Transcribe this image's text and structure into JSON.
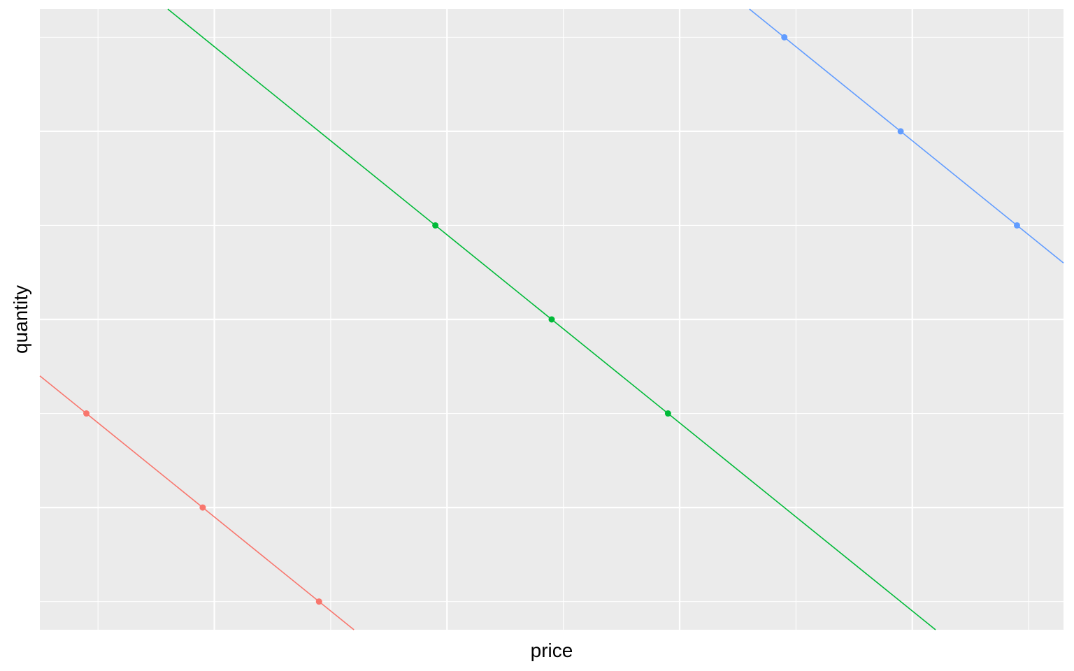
{
  "chart_data": {
    "type": "line",
    "title": "",
    "xlabel": "price",
    "ylabel": "quantity",
    "x_ticks_labeled": false,
    "y_ticks_labeled": false,
    "xlim": [
      0.5,
      9.3
    ],
    "ylim": [
      0.7,
      7.3
    ],
    "x_gridlines_major": [
      2,
      4,
      6,
      8
    ],
    "x_gridlines_minor": [
      1,
      3,
      5,
      7,
      9
    ],
    "y_gridlines_major": [
      2,
      4,
      6
    ],
    "y_gridlines_minor": [
      1,
      3,
      5,
      7
    ],
    "grid": true,
    "background": "#EBEBEB",
    "gridline_color": "#FFFFFF",
    "legend": "none",
    "series": [
      {
        "color": "#F8766D",
        "points": [
          [
            0.9,
            3
          ],
          [
            1.9,
            2
          ],
          [
            2.9,
            1
          ]
        ],
        "line": [
          [
            0.5,
            3.4
          ],
          [
            3.2,
            0.7
          ]
        ]
      },
      {
        "color": "#00BA38",
        "points": [
          [
            3.9,
            5
          ],
          [
            4.9,
            4
          ],
          [
            5.9,
            3
          ]
        ],
        "line": [
          [
            1.6,
            7.3
          ],
          [
            8.2,
            0.7
          ]
        ]
      },
      {
        "color": "#619CFF",
        "points": [
          [
            6.9,
            7
          ],
          [
            7.9,
            6
          ],
          [
            8.9,
            5
          ]
        ],
        "line": [
          [
            6.6,
            7.3
          ],
          [
            9.3,
            4.6
          ]
        ]
      }
    ]
  }
}
